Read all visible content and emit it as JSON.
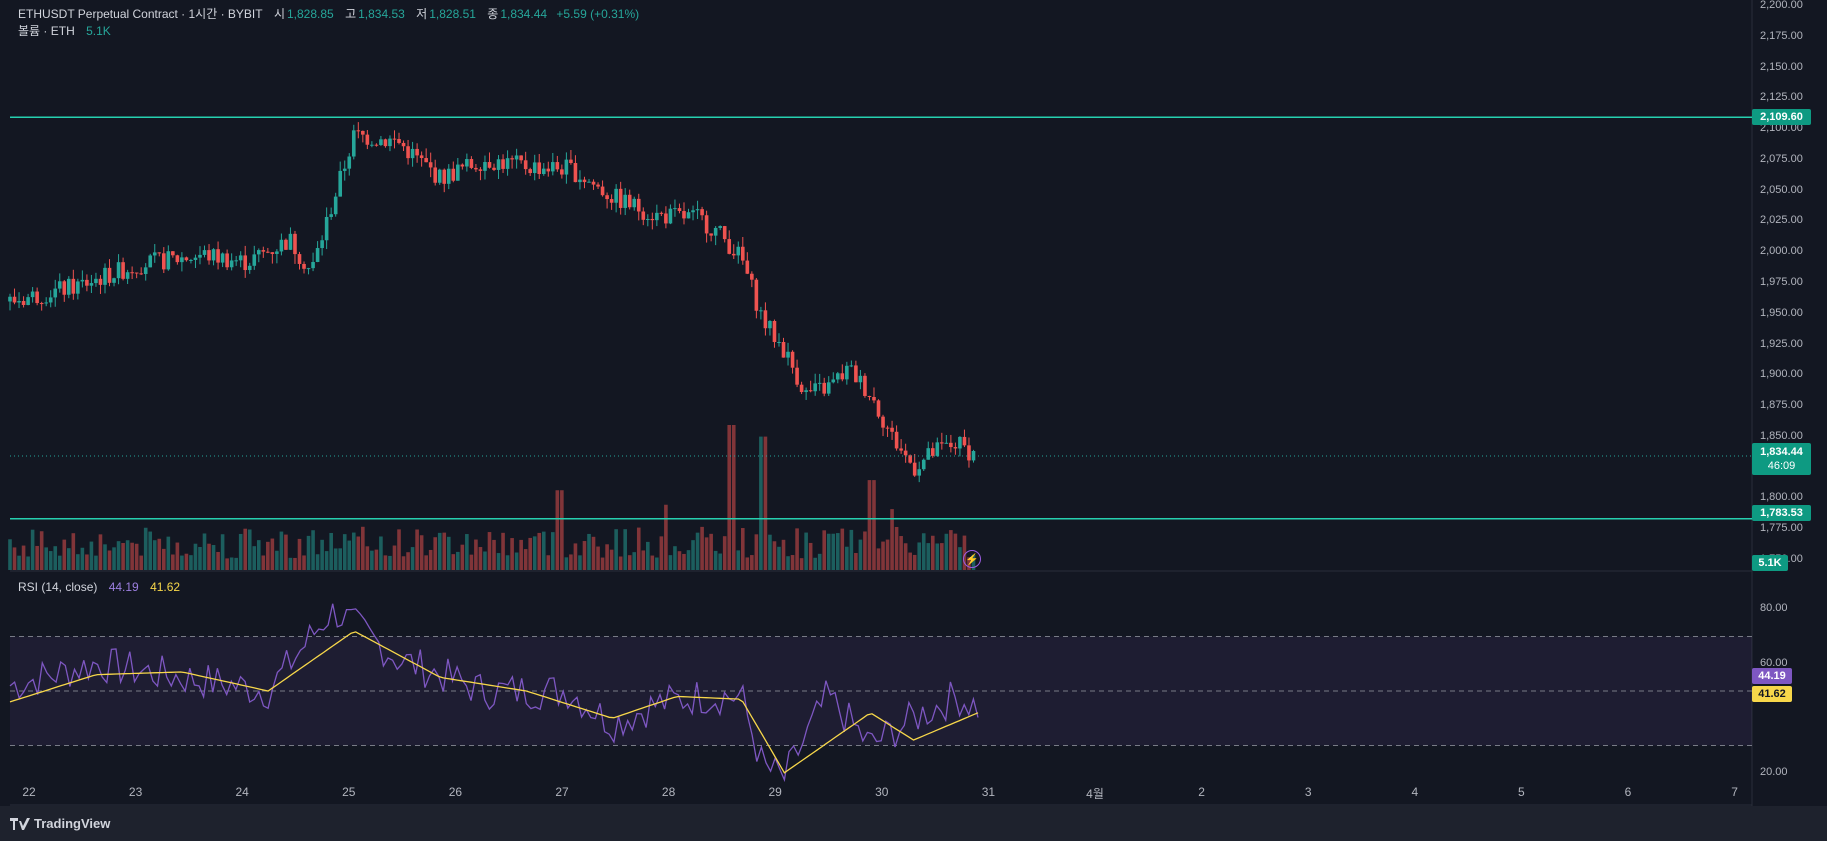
{
  "header": {
    "symbol": "ETHUSDT Perpetual Contract · 1시간 · BYBIT",
    "open_label": "시",
    "open": "1,828.85",
    "high_label": "고",
    "high": "1,834.53",
    "low_label": "저",
    "low": "1,828.51",
    "close_label": "종",
    "close": "1,834.44",
    "change": "+5.59 (+0.31%)"
  },
  "volume_legend": {
    "label": "볼륨 · ETH",
    "value": "5.1K"
  },
  "rsi_legend": {
    "label": "RSI (14, close)",
    "rsi": "44.19",
    "ma": "41.62"
  },
  "price_axis": [
    "2,200.00",
    "2,175.00",
    "2,150.00",
    "2,125.00",
    "2,100.00",
    "2,075.00",
    "2,050.00",
    "2,025.00",
    "2,000.00",
    "1,975.00",
    "1,950.00",
    "1,925.00",
    "1,900.00",
    "1,875.00",
    "1,850.00",
    "1,825.00",
    "1,800.00",
    "1,775.00",
    "1,750.00"
  ],
  "rsi_axis": [
    "80.00",
    "60.00",
    "20.00"
  ],
  "time_axis": [
    "22",
    "23",
    "24",
    "25",
    "26",
    "27",
    "28",
    "29",
    "30",
    "31",
    "4월",
    "2",
    "3",
    "4",
    "5",
    "6",
    "7"
  ],
  "tags": {
    "resistance": "2,109.60",
    "last_price": "1,834.44",
    "countdown": "46:09",
    "support": "1,783.53",
    "volume": "5.1K",
    "rsi": "44.19",
    "rsi_ma": "41.62"
  },
  "branding": {
    "name": "TradingView"
  },
  "colors": {
    "up": "#26a69a",
    "down": "#ef5350",
    "rsi": "#7e57c2",
    "rsi_ma": "#f7d74a",
    "line": "#26d0b0"
  },
  "chart_data": {
    "type": "candlestick",
    "ylim": [
      1750,
      2200
    ],
    "horizontal_levels": [
      2109.6,
      1783.53
    ],
    "last_price": 1834.44,
    "x_labels": [
      "22",
      "23",
      "24",
      "25",
      "26",
      "27",
      "28",
      "29",
      "30",
      "31"
    ],
    "price_path": [
      [
        0,
        1960
      ],
      [
        6,
        1972
      ],
      [
        12,
        1990
      ],
      [
        18,
        1998
      ],
      [
        22,
        1992
      ],
      [
        26,
        2010
      ],
      [
        28,
        1984
      ],
      [
        30,
        2040
      ],
      [
        32,
        2095
      ],
      [
        36,
        2090
      ],
      [
        40,
        2060
      ],
      [
        44,
        2075
      ],
      [
        48,
        2070
      ],
      [
        52,
        2068
      ],
      [
        56,
        2045
      ],
      [
        60,
        2030
      ],
      [
        64,
        2028
      ],
      [
        66,
        2015
      ],
      [
        68,
        1995
      ],
      [
        70,
        1945
      ],
      [
        72,
        1920
      ],
      [
        74,
        1885
      ],
      [
        76,
        1890
      ],
      [
        78,
        1905
      ],
      [
        80,
        1885
      ],
      [
        82,
        1850
      ],
      [
        84,
        1825
      ],
      [
        86,
        1838
      ],
      [
        88,
        1845
      ],
      [
        90,
        1834
      ]
    ],
    "volume_spikes": [
      {
        "day": 28.55,
        "level": 1.0
      },
      {
        "day": 28.85,
        "level": 0.92
      },
      {
        "day": 26.95,
        "level": 0.55
      },
      {
        "day": 27.95,
        "level": 0.45
      },
      {
        "day": 29.85,
        "level": 0.62
      },
      {
        "day": 30.05,
        "level": 0.42
      }
    ],
    "rsi": {
      "ylim": [
        10,
        90
      ],
      "bands": [
        70,
        50,
        30
      ],
      "path": [
        [
          0,
          52
        ],
        [
          8,
          60
        ],
        [
          16,
          55
        ],
        [
          24,
          50
        ],
        [
          30,
          80
        ],
        [
          36,
          62
        ],
        [
          44,
          50
        ],
        [
          52,
          50
        ],
        [
          56,
          38
        ],
        [
          60,
          45
        ],
        [
          64,
          48
        ],
        [
          68,
          48
        ],
        [
          70,
          22
        ],
        [
          72,
          18
        ],
        [
          76,
          48
        ],
        [
          80,
          30
        ],
        [
          84,
          40
        ],
        [
          88,
          48
        ],
        [
          90,
          44
        ]
      ],
      "ma_path": [
        [
          0,
          46
        ],
        [
          8,
          56
        ],
        [
          16,
          57
        ],
        [
          24,
          50
        ],
        [
          32,
          72
        ],
        [
          40,
          55
        ],
        [
          48,
          50
        ],
        [
          56,
          40
        ],
        [
          62,
          48
        ],
        [
          68,
          47
        ],
        [
          72,
          20
        ],
        [
          80,
          42
        ],
        [
          84,
          32
        ],
        [
          90,
          42
        ]
      ]
    }
  }
}
